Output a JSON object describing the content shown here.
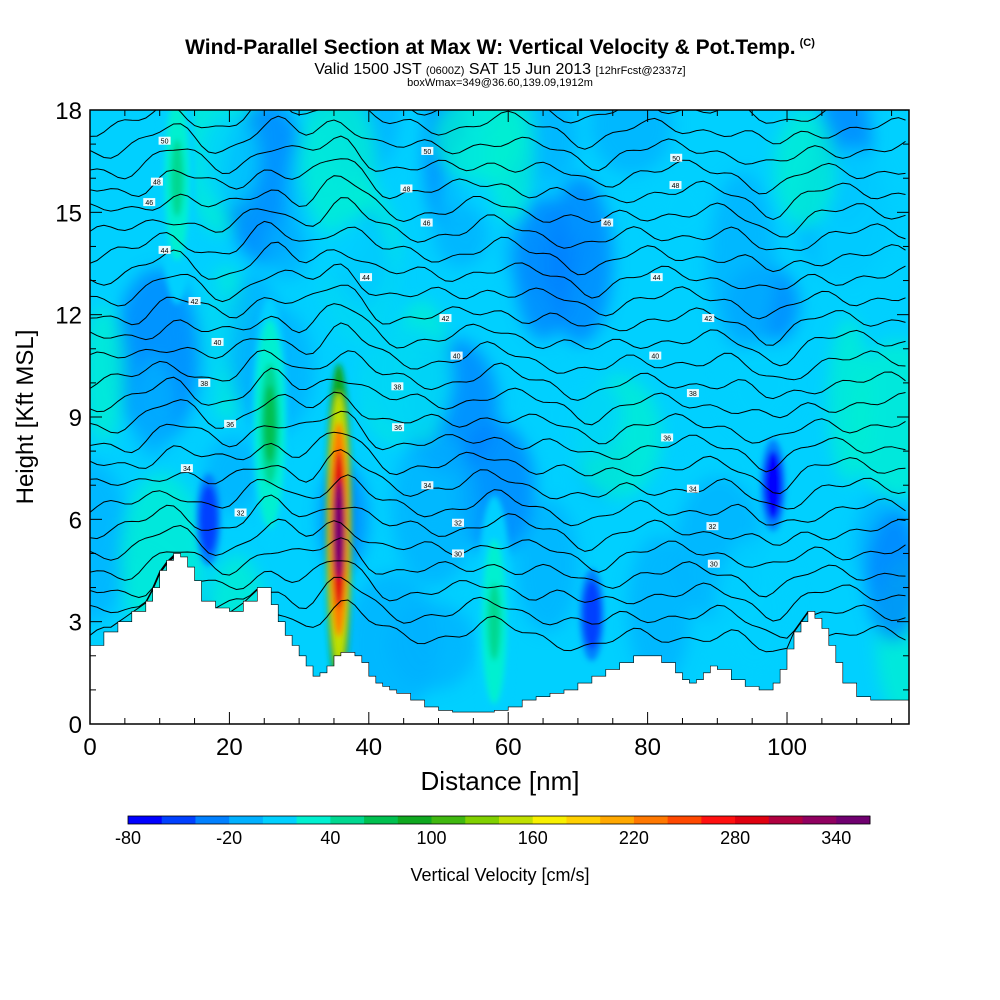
{
  "titles": {
    "main": "Wind-Parallel Section at Max W: Vertical Velocity & Pot.Temp.",
    "copyright": "(C)",
    "valid_prefix": "Valid 1500 JST",
    "valid_utc": "(0600Z)",
    "valid_date": "SAT 15 Jun 2013",
    "forecast": "[12hrFcst@2337z]",
    "box_info": "boxWmax=349@36.60,139.09,1912m"
  },
  "colors": {
    "background_field": "#00d0ff",
    "terrain": "#ffffff",
    "contour": "#000000",
    "max_core": "#ff0000"
  },
  "chart_data": {
    "type": "heatmap",
    "xlabel": "Distance [nm]",
    "ylabel": "Height [Kft MSL]",
    "xlim": [
      0,
      117.5
    ],
    "ylim": [
      0,
      18
    ],
    "x_ticks": [
      0,
      20,
      40,
      60,
      80,
      100
    ],
    "y_ticks": [
      0,
      3,
      6,
      9,
      12,
      15,
      18
    ],
    "colorbar": {
      "label": "Vertical Velocity [cm/s]",
      "min": -80,
      "max": 360,
      "step": 20,
      "tick_labels": [
        "-80",
        "-20",
        "40",
        "100",
        "160",
        "220",
        "280",
        "340"
      ],
      "colors": [
        "#0000ff",
        "#0040ff",
        "#0080ff",
        "#00b0ff",
        "#00d0ff",
        "#00f0d0",
        "#00d890",
        "#00c050",
        "#10a820",
        "#40b810",
        "#80d000",
        "#c0e000",
        "#f8f000",
        "#ffd000",
        "#ffa800",
        "#ff7800",
        "#ff4800",
        "#ff1010",
        "#e00010",
        "#b00040",
        "#900060",
        "#700070"
      ]
    },
    "terrain_profile": {
      "x": [
        0,
        2,
        4,
        6,
        8,
        9,
        10,
        11,
        12,
        13,
        14,
        15,
        16,
        18,
        20,
        22,
        24,
        26,
        27,
        28,
        29,
        30,
        31,
        32,
        33,
        34,
        35,
        36,
        37,
        38,
        39,
        40,
        41,
        42,
        43,
        44,
        46,
        48,
        50,
        52,
        54,
        56,
        58,
        60,
        62,
        64,
        66,
        68,
        70,
        72,
        74,
        76,
        78,
        80,
        82,
        84,
        85,
        86,
        87,
        88,
        89,
        90,
        92,
        94,
        96,
        98,
        99,
        100,
        101,
        102,
        103,
        104,
        105,
        106,
        107,
        108,
        110,
        112,
        114,
        116,
        117.5
      ],
      "y": [
        2.3,
        2.7,
        3.0,
        3.3,
        3.6,
        4.0,
        4.5,
        4.8,
        5.0,
        4.9,
        4.6,
        4.2,
        3.6,
        3.4,
        3.3,
        3.6,
        4.0,
        3.5,
        3.0,
        2.6,
        2.3,
        2.0,
        1.7,
        1.4,
        1.5,
        1.7,
        2.0,
        2.1,
        2.1,
        2.0,
        1.8,
        1.4,
        1.2,
        1.1,
        1.0,
        0.9,
        0.7,
        0.5,
        0.4,
        0.35,
        0.35,
        0.35,
        0.4,
        0.5,
        0.7,
        0.8,
        0.9,
        1.0,
        1.2,
        1.4,
        1.6,
        1.8,
        2.0,
        2.0,
        1.8,
        1.5,
        1.3,
        1.2,
        1.3,
        1.5,
        1.7,
        1.6,
        1.3,
        1.1,
        1.0,
        1.2,
        1.6,
        2.2,
        2.7,
        3.0,
        3.3,
        3.1,
        2.8,
        2.3,
        1.8,
        1.2,
        0.8,
        0.7,
        0.7,
        0.7,
        0.7
      ]
    },
    "updraft_cells": [
      {
        "x": 35.7,
        "y": 5.7,
        "w_max": 349
      },
      {
        "x": 25.8,
        "y": 8.8,
        "w_max": 60
      },
      {
        "x": 12.5,
        "y": 16.0,
        "w_max": 40
      },
      {
        "x": 58.0,
        "y": 3.0,
        "w_max": 40
      }
    ],
    "downdraft_cells": [
      {
        "x": 98.0,
        "y": 7.0,
        "w_min": -80
      },
      {
        "x": 72.0,
        "y": 3.2,
        "w_min": -60
      },
      {
        "x": 17.0,
        "y": 6.0,
        "w_min": -60
      }
    ],
    "theta_contours": {
      "labels": [
        {
          "text": "50",
          "x": 10.7,
          "y": 17.1
        },
        {
          "text": "50",
          "x": 48.4,
          "y": 16.8
        },
        {
          "text": "50",
          "x": 84.1,
          "y": 16.6
        },
        {
          "text": "48",
          "x": 9.6,
          "y": 15.9
        },
        {
          "text": "48",
          "x": 45.4,
          "y": 15.7
        },
        {
          "text": "48",
          "x": 84.0,
          "y": 15.8
        },
        {
          "text": "46",
          "x": 8.5,
          "y": 15.3
        },
        {
          "text": "46",
          "x": 48.3,
          "y": 14.7
        },
        {
          "text": "46",
          "x": 74.2,
          "y": 14.7
        },
        {
          "text": "44",
          "x": 10.7,
          "y": 13.9
        },
        {
          "text": "44",
          "x": 39.6,
          "y": 13.1
        },
        {
          "text": "44",
          "x": 81.3,
          "y": 13.1
        },
        {
          "text": "42",
          "x": 15.0,
          "y": 12.4
        },
        {
          "text": "42",
          "x": 51.0,
          "y": 11.9
        },
        {
          "text": "42",
          "x": 88.7,
          "y": 11.9
        },
        {
          "text": "40",
          "x": 18.3,
          "y": 11.2
        },
        {
          "text": "40",
          "x": 52.6,
          "y": 10.8
        },
        {
          "text": "40",
          "x": 81.1,
          "y": 10.8
        },
        {
          "text": "38",
          "x": 16.4,
          "y": 10.0
        },
        {
          "text": "38",
          "x": 44.1,
          "y": 9.9
        },
        {
          "text": "38",
          "x": 86.5,
          "y": 9.7
        },
        {
          "text": "36",
          "x": 20.1,
          "y": 8.8
        },
        {
          "text": "36",
          "x": 44.2,
          "y": 8.7
        },
        {
          "text": "36",
          "x": 82.8,
          "y": 8.4
        },
        {
          "text": "34",
          "x": 13.9,
          "y": 7.5
        },
        {
          "text": "34",
          "x": 48.4,
          "y": 7.0
        },
        {
          "text": "34",
          "x": 86.5,
          "y": 6.9
        },
        {
          "text": "32",
          "x": 21.6,
          "y": 6.2
        },
        {
          "text": "32",
          "x": 52.8,
          "y": 5.9
        },
        {
          "text": "32",
          "x": 89.3,
          "y": 5.8
        },
        {
          "text": "30",
          "x": 52.8,
          "y": 5.0
        },
        {
          "text": "30",
          "x": 89.5,
          "y": 4.7
        }
      ]
    }
  }
}
